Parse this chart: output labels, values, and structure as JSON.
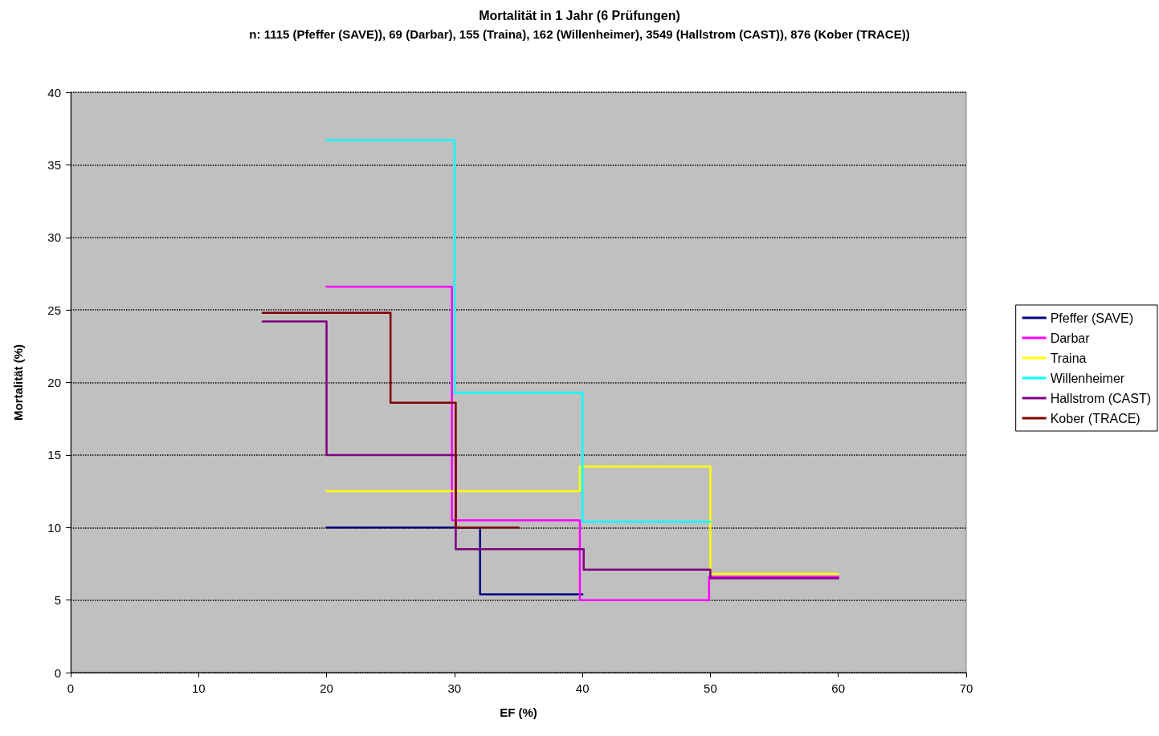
{
  "chart_data": {
    "type": "line",
    "title": "Mortalität in 1 Jahr (6 Prüfungen)",
    "subtitle": "n: 1115 (Pfeffer (SAVE)), 69 (Darbar), 155 (Traina), 162 (Willenheimer), 3549 (Hallstrom (CAST)), 876 (Kober (TRACE))",
    "xlabel": "EF (%)",
    "ylabel": "Mortalität (%)",
    "xlim": [
      0,
      70
    ],
    "xticks": [
      0,
      10,
      20,
      30,
      40,
      50,
      60,
      70
    ],
    "ylim": [
      0,
      40
    ],
    "yticks": [
      0,
      5,
      10,
      15,
      20,
      25,
      30,
      35,
      40
    ],
    "grid": "y",
    "legend": "right",
    "marker": "none",
    "line_style": "solid",
    "series": [
      {
        "name": "Pfeffer (SAVE)",
        "color": "#000080",
        "x": [
          20,
          32,
          32,
          40
        ],
        "values": [
          10,
          10,
          5.4,
          5.4
        ]
      },
      {
        "name": "Darbar",
        "color": "#ff00ff",
        "x": [
          20,
          29.8,
          29.8,
          39.8,
          39.8,
          49.9,
          49.9,
          60
        ],
        "values": [
          26.6,
          26.6,
          10.5,
          10.5,
          5,
          5,
          6.6,
          6.6
        ]
      },
      {
        "name": "Traina",
        "color": "#ffff00",
        "x": [
          20,
          39.8,
          39.8,
          50,
          50,
          60
        ],
        "values": [
          12.5,
          12.5,
          14.2,
          14.2,
          6.8,
          6.8
        ]
      },
      {
        "name": "Willenheimer",
        "color": "#00ffff",
        "x": [
          20,
          30,
          30,
          40,
          40,
          50
        ],
        "values": [
          36.7,
          36.7,
          19.3,
          19.3,
          10.4,
          10.4
        ]
      },
      {
        "name": "Hallstrom (CAST)",
        "color": "#800080",
        "x": [
          15,
          20,
          20,
          30.1,
          30.1,
          40.1,
          40.1,
          50,
          50,
          60
        ],
        "values": [
          24.2,
          24.2,
          15,
          15,
          8.5,
          8.5,
          7.1,
          7.1,
          6.5,
          6.5
        ]
      },
      {
        "name": "Kober (TRACE)",
        "color": "#800000",
        "x": [
          15,
          25,
          25,
          30.1,
          30.1,
          35
        ],
        "values": [
          24.8,
          24.8,
          18.6,
          18.6,
          10,
          10
        ]
      }
    ]
  }
}
